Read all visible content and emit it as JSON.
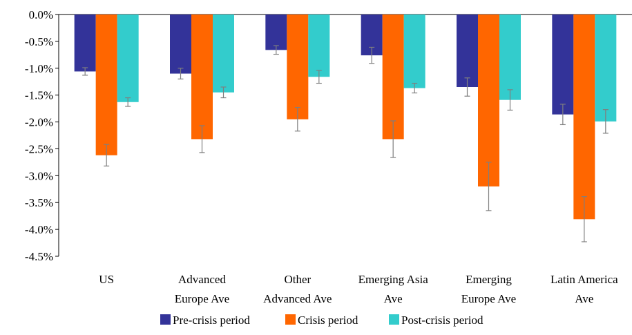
{
  "chart_data": {
    "type": "bar",
    "title": "",
    "xlabel": "",
    "ylabel": "",
    "ylim": [
      -4.5,
      0.0
    ],
    "ytick_step": 0.5,
    "ytick_labels": [
      "0.0%",
      "-0.5%",
      "-1.0%",
      "-1.5%",
      "-2.0%",
      "-2.5%",
      "-3.0%",
      "-3.5%",
      "-4.0%",
      "-4.5%"
    ],
    "grid": false,
    "legend_position": "bottom",
    "categories": [
      [
        "US"
      ],
      [
        "Advanced",
        "Europe Ave"
      ],
      [
        "Other",
        "Advanced Ave"
      ],
      [
        "Emerging Asia",
        "Ave"
      ],
      [
        "Emerging",
        "Europe Ave"
      ],
      [
        "Latin America",
        "Ave"
      ]
    ],
    "series": [
      {
        "name": "Pre-crisis period",
        "color": "#333399",
        "values": [
          -1.06,
          -1.1,
          -0.66,
          -0.76,
          -1.35,
          -1.86
        ],
        "error": [
          0.07,
          0.1,
          0.08,
          0.15,
          0.17,
          0.19
        ]
      },
      {
        "name": "Crisis period",
        "color": "#ff6600",
        "values": [
          -2.62,
          -2.32,
          -1.95,
          -2.32,
          -3.2,
          -3.81
        ],
        "error": [
          0.2,
          0.25,
          0.22,
          0.34,
          0.45,
          0.42
        ]
      },
      {
        "name": "Post-crisis period",
        "color": "#33cccc",
        "values": [
          -1.63,
          -1.45,
          -1.16,
          -1.37,
          -1.59,
          -1.99
        ],
        "error": [
          0.08,
          0.1,
          0.12,
          0.09,
          0.19,
          0.22
        ]
      }
    ]
  }
}
